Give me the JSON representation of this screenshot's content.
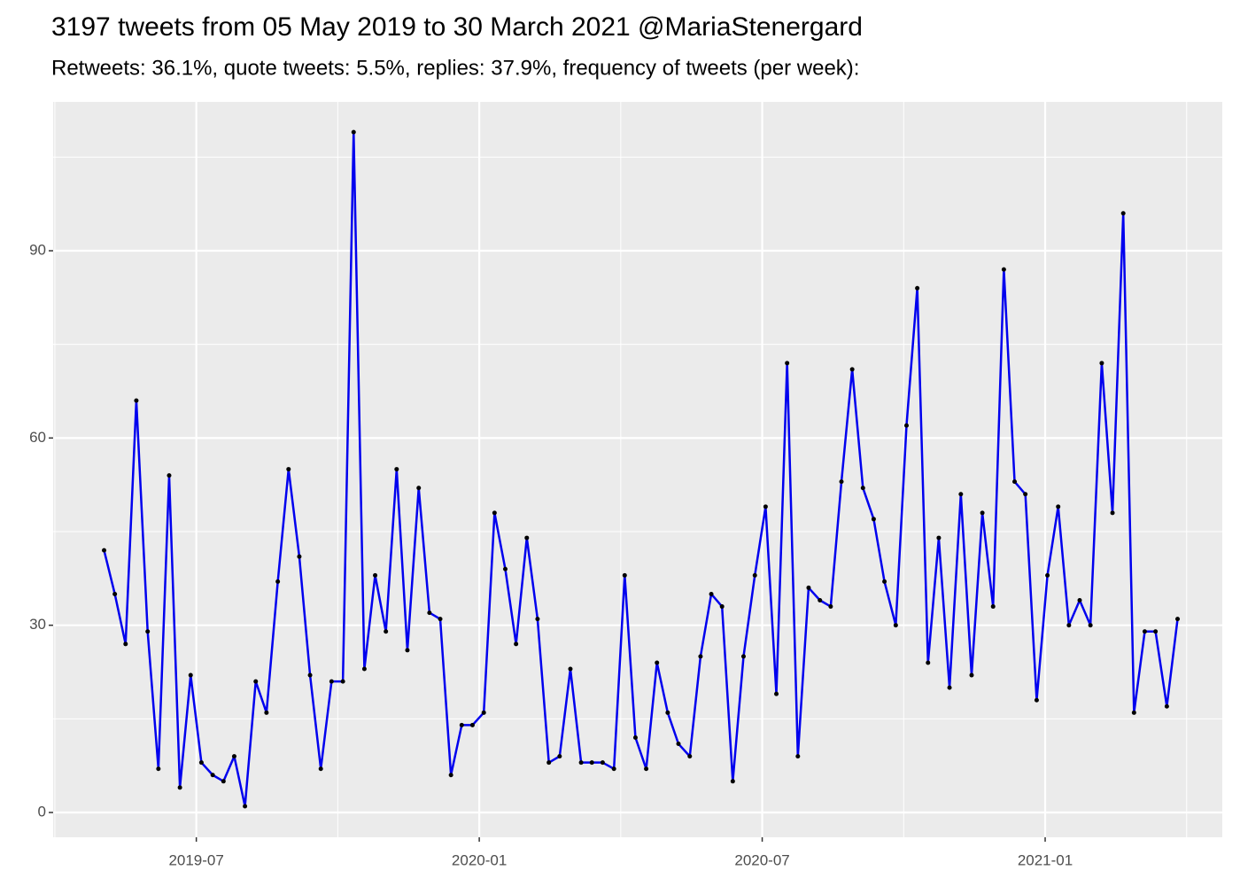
{
  "chart_data": {
    "type": "line",
    "title": "3197 tweets from 05 May 2019 to 30 March 2021 @MariaStenergard",
    "subtitle": "Retweets: 36.1%, quote tweets: 5.5%, replies: 37.9%, frequency of tweets (per week):",
    "x": [
      2019.337,
      2019.356,
      2019.375,
      2019.394,
      2019.414,
      2019.433,
      2019.452,
      2019.471,
      2019.49,
      2019.509,
      2019.529,
      2019.548,
      2019.567,
      2019.586,
      2019.605,
      2019.624,
      2019.644,
      2019.663,
      2019.682,
      2019.701,
      2019.72,
      2019.739,
      2019.759,
      2019.778,
      2019.797,
      2019.816,
      2019.835,
      2019.854,
      2019.873,
      2019.893,
      2019.912,
      2019.931,
      2019.95,
      2019.969,
      2019.988,
      2020.008,
      2020.027,
      2020.046,
      2020.065,
      2020.084,
      2020.103,
      2020.123,
      2020.142,
      2020.161,
      2020.18,
      2020.199,
      2020.218,
      2020.238,
      2020.257,
      2020.276,
      2020.295,
      2020.314,
      2020.333,
      2020.352,
      2020.372,
      2020.391,
      2020.41,
      2020.429,
      2020.448,
      2020.467,
      2020.487,
      2020.506,
      2020.525,
      2020.544,
      2020.563,
      2020.582,
      2020.602,
      2020.621,
      2020.64,
      2020.659,
      2020.678,
      2020.697,
      2020.716,
      2020.736,
      2020.755,
      2020.774,
      2020.793,
      2020.812,
      2020.831,
      2020.851,
      2020.87,
      2020.889,
      2020.908,
      2020.927,
      2020.946,
      2020.965,
      2020.985,
      2021.004,
      2021.023,
      2021.042,
      2021.061,
      2021.08,
      2021.1,
      2021.119,
      2021.138,
      2021.157,
      2021.176,
      2021.195,
      2021.215,
      2021.234
    ],
    "values": [
      42,
      35,
      27,
      66,
      29,
      7,
      54,
      4,
      22,
      8,
      6,
      5,
      9,
      1,
      21,
      16,
      37,
      55,
      41,
      22,
      7,
      21,
      21,
      109,
      23,
      38,
      29,
      55,
      26,
      52,
      32,
      31,
      6,
      14,
      14,
      16,
      48,
      39,
      27,
      44,
      31,
      8,
      9,
      23,
      8,
      8,
      8,
      7,
      38,
      12,
      7,
      24,
      16,
      11,
      9,
      25,
      35,
      33,
      5,
      25,
      38,
      49,
      19,
      72,
      9,
      36,
      34,
      33,
      53,
      71,
      52,
      47,
      37,
      30,
      62,
      84,
      24,
      44,
      20,
      51,
      22,
      48,
      33,
      87,
      53,
      51,
      18,
      38,
      49,
      30,
      34,
      30,
      72,
      48,
      96,
      16,
      29,
      29,
      17,
      31
    ],
    "color": "#0000ee",
    "point_color": "#000000",
    "xlim": [
      2019.247,
      2021.313
    ],
    "xticks": [
      {
        "value": 2019.5,
        "label": "2019-07"
      },
      {
        "value": 2020.0,
        "label": "2020-01"
      },
      {
        "value": 2020.5,
        "label": "2020-07"
      },
      {
        "value": 2021.0,
        "label": "2021-01"
      }
    ],
    "x_minor_ticks": [
      2019.25,
      2019.75,
      2020.25,
      2020.75,
      2021.25
    ],
    "ylim": [
      -3.97,
      113.85
    ],
    "yticks": [
      0,
      30,
      60,
      90
    ],
    "y_minor_ticks": [
      15,
      45,
      75,
      105
    ],
    "grid": true
  }
}
